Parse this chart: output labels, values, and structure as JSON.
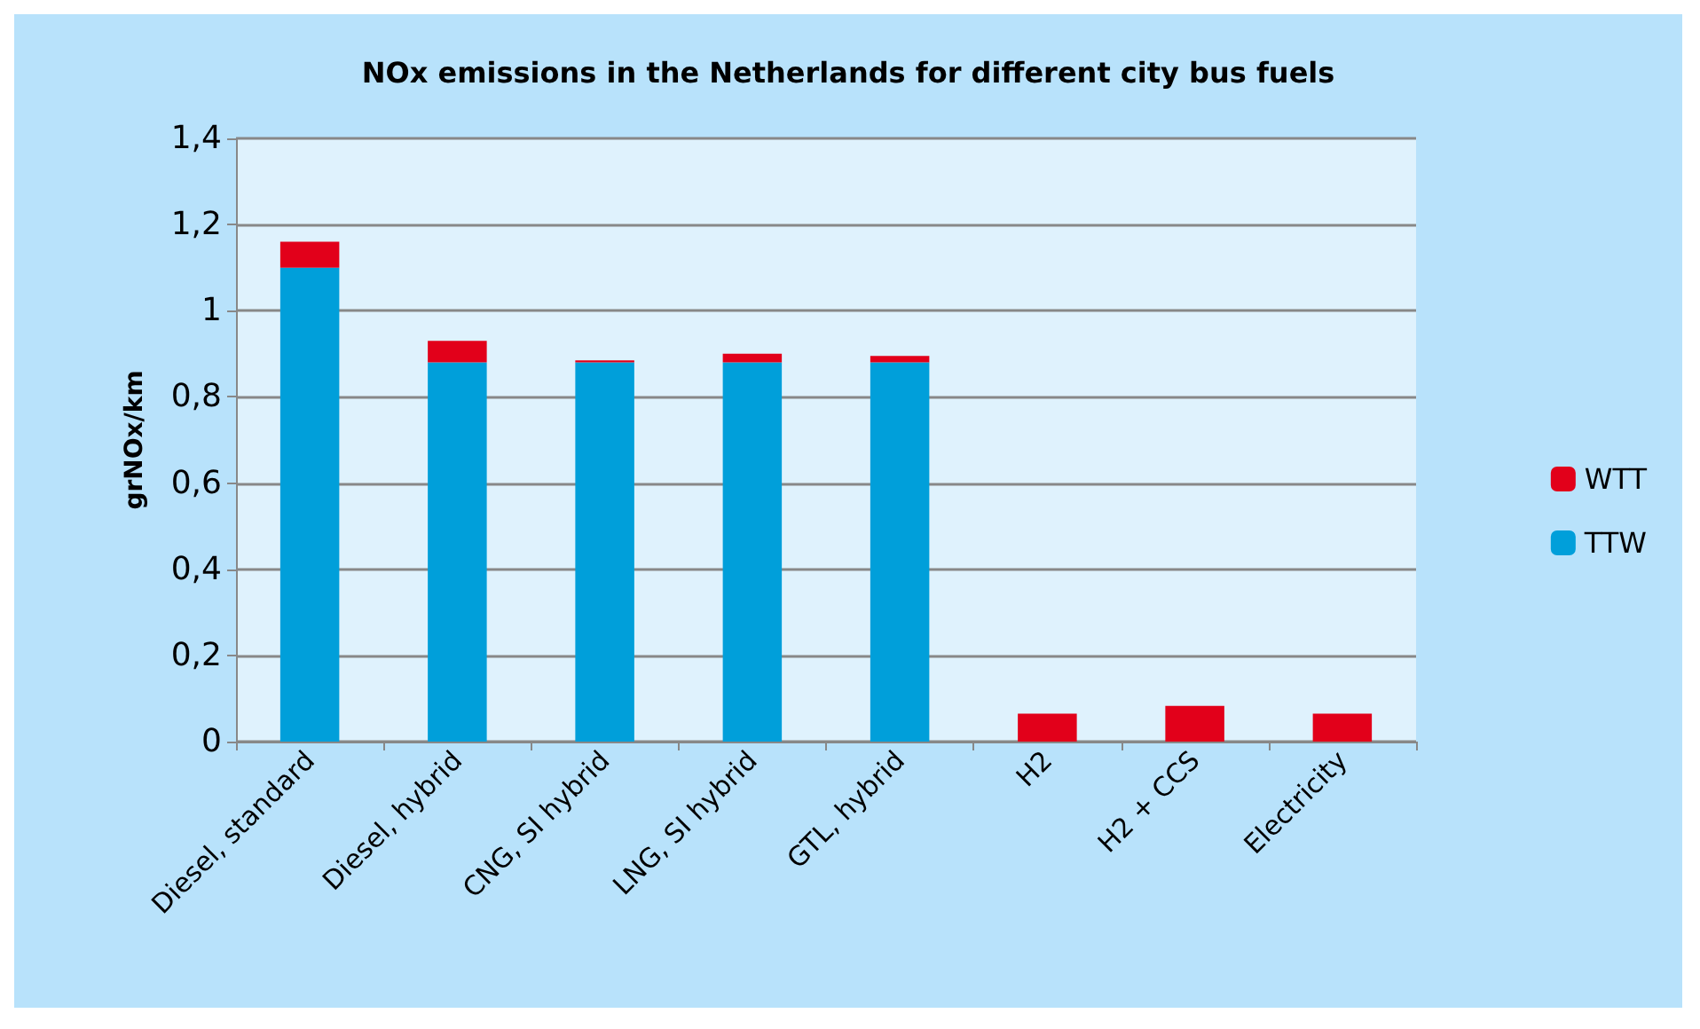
{
  "chart_data": {
    "type": "bar",
    "stacked": true,
    "title": "NOx emissions in the Netherlands for different city bus fuels",
    "ylabel": "grNOx/km",
    "categories": [
      "Diesel, standard",
      "Diesel, hybrid",
      "CNG, SI hybrid",
      "LNG, SI hybrid",
      "GTL, hybrid",
      "H2",
      "H2 + CCS",
      "Electricity"
    ],
    "series": [
      {
        "name": "TTW",
        "color": "#009fda",
        "values": [
          1.1,
          0.88,
          0.88,
          0.88,
          0.88,
          0,
          0,
          0
        ]
      },
      {
        "name": "WTT",
        "color": "#e2001a",
        "values": [
          0.06,
          0.05,
          0.005,
          0.02,
          0.015,
          0.065,
          0.083,
          0.065
        ]
      }
    ],
    "ylim": [
      0,
      1.4
    ],
    "yticks": [
      {
        "value": 0,
        "label": "0"
      },
      {
        "value": 0.2,
        "label": "0,2"
      },
      {
        "value": 0.4,
        "label": "0,4"
      },
      {
        "value": 0.6,
        "label": "0,6"
      },
      {
        "value": 0.8,
        "label": "0,8"
      },
      {
        "value": 1,
        "label": "1"
      },
      {
        "value": 1.2,
        "label": "1,2"
      },
      {
        "value": 1.4,
        "label": "1,4"
      }
    ],
    "grid": "y",
    "legend": "right"
  }
}
